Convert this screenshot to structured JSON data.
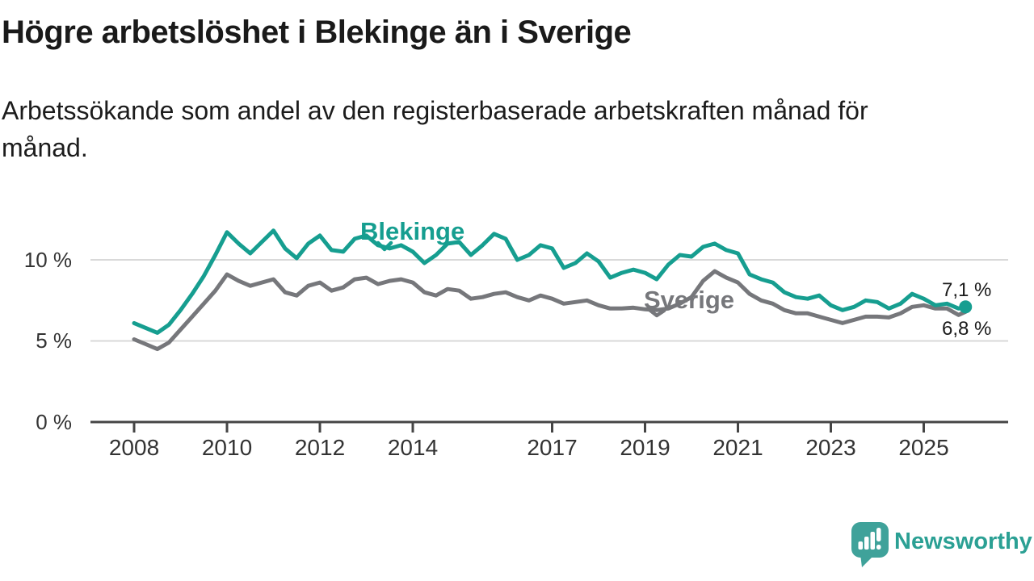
{
  "header": {
    "title": "Högre arbetslöshet i Blekinge än i Sverige",
    "subtitle_line1": "Arbetssökande som andel av den registerbaserade arbetskraften månad för",
    "subtitle_line2": "månad."
  },
  "chart_data": {
    "type": "line",
    "title": "Högre arbetslöshet i Blekinge än i Sverige",
    "subtitle": "Arbetssökande som andel av den registerbaserade arbetskraften månad för månad.",
    "unit": "%",
    "grid": "horizontal-only",
    "legend_position": "inline-labels-on-lines",
    "ylim": [
      0,
      12.5
    ],
    "xlim": [
      2007.9,
      2026.9
    ],
    "y_ticks": [
      {
        "value": 10,
        "label": "10 %"
      },
      {
        "value": 5,
        "label": "5 %"
      },
      {
        "value": 0,
        "label": "0 %"
      }
    ],
    "x_ticks": [
      {
        "year": 2008,
        "label": "2008"
      },
      {
        "year": 2010,
        "label": "2010"
      },
      {
        "year": 2012,
        "label": "2012"
      },
      {
        "year": 2014,
        "label": "2014"
      },
      {
        "year": 2017,
        "label": "2017"
      },
      {
        "year": 2019,
        "label": "2019"
      },
      {
        "year": 2021,
        "label": "2021"
      },
      {
        "year": 2023,
        "label": "2023"
      },
      {
        "year": 2025,
        "label": "2025"
      }
    ],
    "series": [
      {
        "name": "Blekinge",
        "color": "#169e90",
        "end_label": "7,1 %",
        "end_value": 7.1,
        "points": [
          [
            2008.0,
            6.1
          ],
          [
            2008.25,
            5.8
          ],
          [
            2008.5,
            5.5
          ],
          [
            2008.75,
            6.0
          ],
          [
            2009.0,
            6.9
          ],
          [
            2009.25,
            7.9
          ],
          [
            2009.5,
            9.0
          ],
          [
            2009.75,
            10.3
          ],
          [
            2010.0,
            11.7
          ],
          [
            2010.25,
            11.0
          ],
          [
            2010.5,
            10.4
          ],
          [
            2010.75,
            11.1
          ],
          [
            2011.0,
            11.8
          ],
          [
            2011.25,
            10.7
          ],
          [
            2011.5,
            10.1
          ],
          [
            2011.75,
            11.0
          ],
          [
            2012.0,
            11.5
          ],
          [
            2012.25,
            10.6
          ],
          [
            2012.5,
            10.5
          ],
          [
            2012.75,
            11.3
          ],
          [
            2013.0,
            11.5
          ],
          [
            2013.25,
            10.9
          ],
          [
            2013.5,
            10.7
          ],
          [
            2013.75,
            10.9
          ],
          [
            2014.0,
            10.5
          ],
          [
            2014.25,
            9.8
          ],
          [
            2014.5,
            10.3
          ],
          [
            2014.75,
            11.0
          ],
          [
            2015.0,
            11.1
          ],
          [
            2015.25,
            10.3
          ],
          [
            2015.5,
            10.9
          ],
          [
            2015.75,
            11.6
          ],
          [
            2016.0,
            11.3
          ],
          [
            2016.25,
            10.0
          ],
          [
            2016.5,
            10.3
          ],
          [
            2016.75,
            10.9
          ],
          [
            2017.0,
            10.7
          ],
          [
            2017.25,
            9.5
          ],
          [
            2017.5,
            9.8
          ],
          [
            2017.75,
            10.4
          ],
          [
            2018.0,
            9.9
          ],
          [
            2018.25,
            8.9
          ],
          [
            2018.5,
            9.2
          ],
          [
            2018.75,
            9.4
          ],
          [
            2019.0,
            9.2
          ],
          [
            2019.25,
            8.8
          ],
          [
            2019.5,
            9.7
          ],
          [
            2019.75,
            10.3
          ],
          [
            2020.0,
            10.2
          ],
          [
            2020.25,
            10.8
          ],
          [
            2020.5,
            11.0
          ],
          [
            2020.75,
            10.6
          ],
          [
            2021.0,
            10.4
          ],
          [
            2021.25,
            9.1
          ],
          [
            2021.5,
            8.8
          ],
          [
            2021.75,
            8.6
          ],
          [
            2022.0,
            8.0
          ],
          [
            2022.25,
            7.7
          ],
          [
            2022.5,
            7.6
          ],
          [
            2022.75,
            7.8
          ],
          [
            2023.0,
            7.2
          ],
          [
            2023.25,
            6.9
          ],
          [
            2023.5,
            7.1
          ],
          [
            2023.75,
            7.5
          ],
          [
            2024.0,
            7.4
          ],
          [
            2024.25,
            7.0
          ],
          [
            2024.5,
            7.3
          ],
          [
            2024.75,
            7.9
          ],
          [
            2025.0,
            7.6
          ],
          [
            2025.25,
            7.2
          ],
          [
            2025.5,
            7.3
          ],
          [
            2025.75,
            7.0
          ],
          [
            2025.9,
            7.1
          ]
        ]
      },
      {
        "name": "Sverige",
        "color": "#76777b",
        "end_label": "6,8 %",
        "end_value": 6.8,
        "points": [
          [
            2008.0,
            5.1
          ],
          [
            2008.25,
            4.8
          ],
          [
            2008.5,
            4.5
          ],
          [
            2008.75,
            4.9
          ],
          [
            2009.0,
            5.7
          ],
          [
            2009.25,
            6.5
          ],
          [
            2009.5,
            7.3
          ],
          [
            2009.75,
            8.1
          ],
          [
            2010.0,
            9.1
          ],
          [
            2010.25,
            8.7
          ],
          [
            2010.5,
            8.4
          ],
          [
            2010.75,
            8.6
          ],
          [
            2011.0,
            8.8
          ],
          [
            2011.25,
            8.0
          ],
          [
            2011.5,
            7.8
          ],
          [
            2011.75,
            8.4
          ],
          [
            2012.0,
            8.6
          ],
          [
            2012.25,
            8.1
          ],
          [
            2012.5,
            8.3
          ],
          [
            2012.75,
            8.8
          ],
          [
            2013.0,
            8.9
          ],
          [
            2013.25,
            8.5
          ],
          [
            2013.5,
            8.7
          ],
          [
            2013.75,
            8.8
          ],
          [
            2014.0,
            8.6
          ],
          [
            2014.25,
            8.0
          ],
          [
            2014.5,
            7.8
          ],
          [
            2014.75,
            8.2
          ],
          [
            2015.0,
            8.1
          ],
          [
            2015.25,
            7.6
          ],
          [
            2015.5,
            7.7
          ],
          [
            2015.75,
            7.9
          ],
          [
            2016.0,
            8.0
          ],
          [
            2016.25,
            7.7
          ],
          [
            2016.5,
            7.5
          ],
          [
            2016.75,
            7.8
          ],
          [
            2017.0,
            7.6
          ],
          [
            2017.25,
            7.3
          ],
          [
            2017.5,
            7.4
          ],
          [
            2017.75,
            7.5
          ],
          [
            2018.0,
            7.2
          ],
          [
            2018.25,
            7.0
          ],
          [
            2018.5,
            7.0
          ],
          [
            2018.75,
            7.05
          ],
          [
            2019.0,
            6.95
          ],
          [
            2019.25,
            6.9
          ],
          [
            2019.5,
            7.0
          ],
          [
            2019.75,
            7.3
          ],
          [
            2020.0,
            7.7
          ],
          [
            2020.25,
            8.7
          ],
          [
            2020.5,
            9.3
          ],
          [
            2020.75,
            8.9
          ],
          [
            2021.0,
            8.6
          ],
          [
            2021.25,
            7.9
          ],
          [
            2021.5,
            7.5
          ],
          [
            2021.75,
            7.3
          ],
          [
            2022.0,
            6.9
          ],
          [
            2022.25,
            6.7
          ],
          [
            2022.5,
            6.7
          ],
          [
            2022.75,
            6.5
          ],
          [
            2023.0,
            6.3
          ],
          [
            2023.25,
            6.1
          ],
          [
            2023.5,
            6.3
          ],
          [
            2023.75,
            6.5
          ],
          [
            2024.0,
            6.5
          ],
          [
            2024.25,
            6.45
          ],
          [
            2024.5,
            6.7
          ],
          [
            2024.75,
            7.1
          ],
          [
            2025.0,
            7.2
          ],
          [
            2025.25,
            7.0
          ],
          [
            2025.5,
            7.0
          ],
          [
            2025.75,
            6.6
          ],
          [
            2025.9,
            6.8
          ]
        ]
      }
    ],
    "colors": {
      "grid": "#d9d9d9",
      "axis": "#454545",
      "tick_text": "#333333",
      "value_text": "#1a1a1a"
    }
  },
  "footer": {
    "brand": "Newsworthy",
    "brand_color": "#2ba094",
    "brand_icon": "bar-chart-speech-bubble",
    "brand_icon_color": "#3fa29a"
  }
}
